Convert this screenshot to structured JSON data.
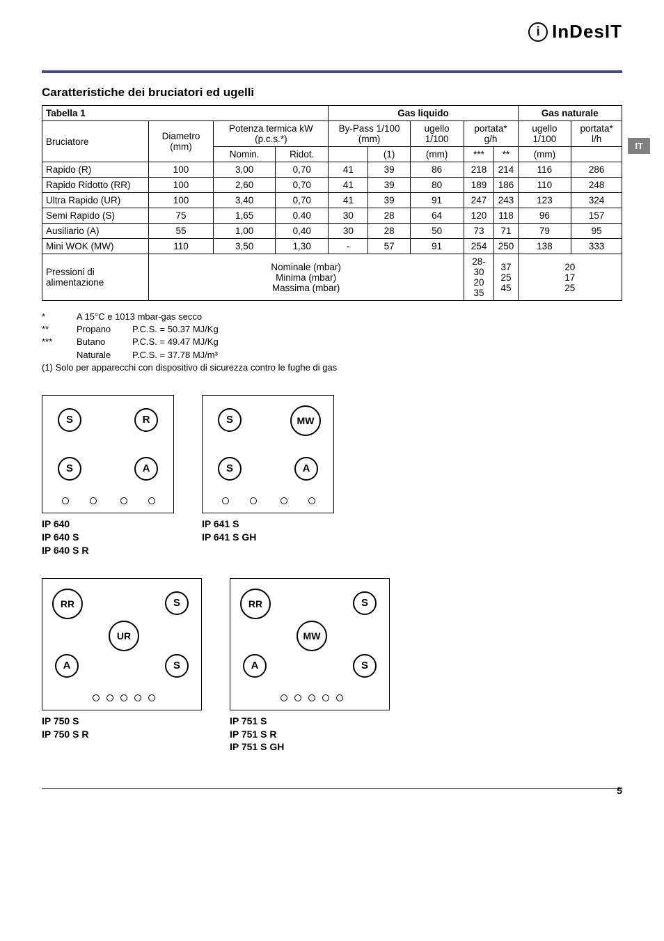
{
  "logo": {
    "icon_char": "i",
    "text": "InDesIT"
  },
  "lang_tab": "IT",
  "section_title": "Caratteristiche dei bruciatori ed ugelli",
  "table": {
    "caption": "Tabella 1",
    "group_headers": {
      "gas_liquido": "Gas liquido",
      "gas_naturale": "Gas naturale"
    },
    "headers": {
      "bruciatore": "Bruciatore",
      "diametro": "Diametro (mm)",
      "potenza": "Potenza termica kW (p.c.s.*)",
      "bypass": "By-Pass 1/100 (mm)",
      "ugello_liq": "ugello 1/100",
      "portata_liq": "portata* g/h",
      "ugello_nat": "ugello 1/100",
      "portata_nat": "portata* l/h"
    },
    "sub": {
      "nomin": "Nomin.",
      "ridot": "Ridot.",
      "bp_blank": "",
      "bp1": "(1)",
      "ug_mm": "(mm)",
      "triple": "***",
      "double": "**",
      "ug_mm2": "(mm)"
    },
    "rows": [
      {
        "name": "Rapido (R)",
        "d": "100",
        "nom": "3,00",
        "rid": "0,70",
        "bp": "41",
        "bp1": "39",
        "ugl": "86",
        "p3": "218",
        "p2": "214",
        "ugn": "116",
        "pn": "286"
      },
      {
        "name": "Rapido Ridotto (RR)",
        "d": "100",
        "nom": "2,60",
        "rid": "0,70",
        "bp": "41",
        "bp1": "39",
        "ugl": "80",
        "p3": "189",
        "p2": "186",
        "ugn": "110",
        "pn": "248"
      },
      {
        "name": "Ultra Rapido (UR)",
        "d": "100",
        "nom": "3,40",
        "rid": "0,70",
        "bp": "41",
        "bp1": "39",
        "ugl": "91",
        "p3": "247",
        "p2": "243",
        "ugn": "123",
        "pn": "324"
      },
      {
        "name": "Semi Rapido (S)",
        "d": "75",
        "nom": "1,65",
        "rid": "0.40",
        "bp": "30",
        "bp1": "28",
        "ugl": "64",
        "p3": "120",
        "p2": "118",
        "ugn": "96",
        "pn": "157"
      },
      {
        "name": "Ausiliario (A)",
        "d": "55",
        "nom": "1,00",
        "rid": "0,40",
        "bp": "30",
        "bp1": "28",
        "ugl": "50",
        "p3": "73",
        "p2": "71",
        "ugn": "79",
        "pn": "95"
      },
      {
        "name": "Mini WOK (MW)",
        "d": "110",
        "nom": "3,50",
        "rid": "1,30",
        "bp": "-",
        "bp1": "57",
        "ugl": "91",
        "p3": "254",
        "p2": "250",
        "ugn": "138",
        "pn": "333"
      }
    ],
    "pressure": {
      "label": "Pressioni di alimentazione",
      "nom": "Nominale (mbar)",
      "min": "Minima (mbar)",
      "max": "Massima (mbar)",
      "liq3": "28-30",
      "liq3b": "20",
      "liq3c": "35",
      "liq2": "37",
      "liq2b": "25",
      "liq2c": "45",
      "nat": "20",
      "natb": "17",
      "natc": "25"
    }
  },
  "footnotes": {
    "n1": {
      "mark": "*",
      "text": "A 15°C e 1013 mbar-gas secco"
    },
    "n2": {
      "mark": "**",
      "label": "Propano",
      "text": "P.C.S. = 50.37 MJ/Kg"
    },
    "n3": {
      "mark": "***",
      "label": "Butano",
      "text": "P.C.S. = 49.47 MJ/Kg"
    },
    "n4": {
      "mark": "",
      "label": "Naturale",
      "text": "P.C.S. = 37.78 MJ/m³"
    },
    "n5": "(1) Solo per apparecchi con dispositivo di sicurezza contro le fughe di gas"
  },
  "diagrams": {
    "d1": {
      "burners": [
        "S",
        "R",
        "S",
        "A"
      ],
      "knobs": 4,
      "labels": [
        "IP 640",
        "IP 640 S",
        "IP 640 S R"
      ]
    },
    "d2": {
      "burners": [
        "S",
        "MW",
        "S",
        "A"
      ],
      "knobs": 4,
      "labels": [
        "IP 641 S",
        "IP 641 S GH"
      ]
    },
    "d3": {
      "burners": [
        "RR",
        "S",
        "UR",
        "A",
        "S"
      ],
      "knobs": 5,
      "labels": [
        "IP 750 S",
        "IP 750 S R"
      ]
    },
    "d4": {
      "burners": [
        "RR",
        "S",
        "MW",
        "A",
        "S"
      ],
      "knobs": 5,
      "labels": [
        "IP 751 S",
        "IP 751 S R",
        "IP 751 S GH"
      ]
    }
  },
  "burner_letters": {
    "S": "S",
    "R": "R",
    "A": "A",
    "MW": "MW",
    "RR": "RR",
    "UR": "UR"
  },
  "page_num": "5"
}
